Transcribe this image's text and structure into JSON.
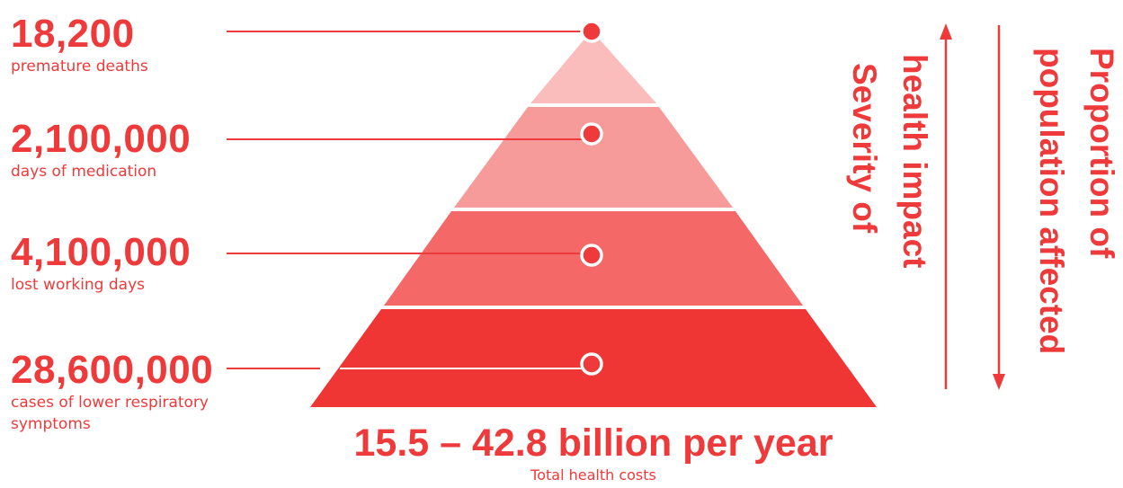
{
  "stats": [
    {
      "value": "18,200",
      "label": "premature deaths"
    },
    {
      "value": "2,100,000",
      "label": "days of medication"
    },
    {
      "value": "4,100,000",
      "label": "lost working days"
    },
    {
      "value": "28,600,000",
      "label": "cases of lower respiratory symptoms"
    }
  ],
  "total": {
    "amount": "15.5 – 42.8 billion per year",
    "caption": "Total health costs"
  },
  "axes": {
    "severity_line1": "Severity of",
    "severity_line2": "health impact",
    "proportion_line1": "Proportion of",
    "proportion_line2": "population affected"
  },
  "colors": {
    "accent": "#ee3a3a",
    "tier1": "#fbbcbc",
    "tier2": "#f79a9a",
    "tier3": "#f56868",
    "tier4": "#f03535"
  }
}
